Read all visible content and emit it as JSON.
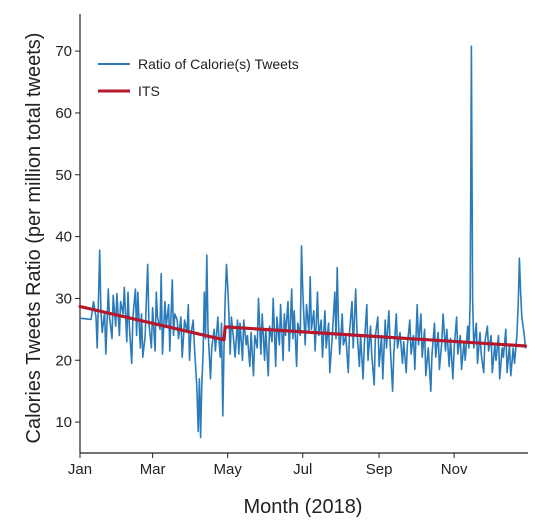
{
  "chart_data": {
    "type": "line",
    "title": "",
    "xlabel": "Month (2018)",
    "ylabel": "Calories Tweets Ratio (per million total tweets)",
    "x_unit": "day of year 2018",
    "xlim": [
      1,
      365
    ],
    "ylim": [
      5,
      76
    ],
    "x_ticks": [
      {
        "day": 1,
        "label": "Jan"
      },
      {
        "day": 60,
        "label": "Mar"
      },
      {
        "day": 121,
        "label": "May"
      },
      {
        "day": 182,
        "label": "Jul"
      },
      {
        "day": 244,
        "label": "Sep"
      },
      {
        "day": 305,
        "label": "Nov"
      }
    ],
    "y_ticks": [
      10,
      20,
      30,
      40,
      50,
      60,
      70
    ],
    "grid": false,
    "legend_position": "top-left",
    "series": [
      {
        "name": "Ratio of Calorie(s) Tweets",
        "color": "#2b7bba",
        "points": [
          [
            1,
            26.8
          ],
          [
            10,
            26.6
          ],
          [
            12,
            29.5
          ],
          [
            14,
            27.0
          ],
          [
            15,
            22.0
          ],
          [
            16,
            30.0
          ],
          [
            17,
            37.8
          ],
          [
            18,
            28.0
          ],
          [
            19,
            24.5
          ],
          [
            21,
            27.8
          ],
          [
            22,
            21.0
          ],
          [
            24,
            31.5
          ],
          [
            25,
            27.0
          ],
          [
            27,
            23.5
          ],
          [
            28,
            30.5
          ],
          [
            30,
            25.5
          ],
          [
            31,
            30.8
          ],
          [
            33,
            24.0
          ],
          [
            34,
            29.5
          ],
          [
            36,
            27.5
          ],
          [
            37,
            31.8
          ],
          [
            39,
            23.0
          ],
          [
            40,
            31.0
          ],
          [
            41,
            26.0
          ],
          [
            43,
            19.5
          ],
          [
            44,
            27.0
          ],
          [
            46,
            31.5
          ],
          [
            47,
            24.0
          ],
          [
            48,
            31.0
          ],
          [
            50,
            22.0
          ],
          [
            51,
            27.5
          ],
          [
            52,
            20.5
          ],
          [
            54,
            24.0
          ],
          [
            55,
            30.5
          ],
          [
            56,
            35.5
          ],
          [
            57,
            26.0
          ],
          [
            59,
            22.0
          ],
          [
            60,
            28.5
          ],
          [
            62,
            21.5
          ],
          [
            63,
            31.0
          ],
          [
            64,
            27.0
          ],
          [
            66,
            25.0
          ],
          [
            67,
            34.0
          ],
          [
            68,
            21.0
          ],
          [
            70,
            29.5
          ],
          [
            71,
            25.5
          ],
          [
            73,
            29.0
          ],
          [
            74,
            21.5
          ],
          [
            76,
            33.0
          ],
          [
            77,
            24.0
          ],
          [
            78,
            27.5
          ],
          [
            80,
            26.5
          ],
          [
            81,
            23.5
          ],
          [
            83,
            27.0
          ],
          [
            84,
            20.5
          ],
          [
            86,
            26.5
          ],
          [
            88,
            24.5
          ],
          [
            89,
            29.0
          ],
          [
            90,
            20.0
          ],
          [
            91,
            24.0
          ],
          [
            93,
            26.5
          ],
          [
            94,
            22.0
          ],
          [
            96,
            15.5
          ],
          [
            97,
            8.5
          ],
          [
            98,
            17.0
          ],
          [
            99,
            7.5
          ],
          [
            100,
            16.0
          ],
          [
            101,
            21.0
          ],
          [
            102,
            31.0
          ],
          [
            103,
            23.5
          ],
          [
            104,
            37.0
          ],
          [
            105,
            25.0
          ],
          [
            107,
            17.0
          ],
          [
            108,
            22.0
          ],
          [
            110,
            25.0
          ],
          [
            111,
            21.5
          ],
          [
            113,
            27.0
          ],
          [
            114,
            23.0
          ],
          [
            115,
            20.5
          ],
          [
            116,
            26.0
          ],
          [
            117,
            11.0
          ],
          [
            118,
            22.0
          ],
          [
            119,
            30.0
          ],
          [
            120,
            35.5
          ],
          [
            121,
            32.0
          ],
          [
            122,
            27.5
          ],
          [
            123,
            21.0
          ],
          [
            124,
            27.0
          ],
          [
            126,
            23.0
          ],
          [
            127,
            20.5
          ],
          [
            129,
            26.5
          ],
          [
            130,
            21.0
          ],
          [
            131,
            26.0
          ],
          [
            133,
            20.0
          ],
          [
            134,
            26.5
          ],
          [
            136,
            22.5
          ],
          [
            137,
            24.0
          ],
          [
            139,
            19.0
          ],
          [
            140,
            24.5
          ],
          [
            142,
            17.5
          ],
          [
            143,
            24.0
          ],
          [
            145,
            22.0
          ],
          [
            146,
            30.0
          ],
          [
            148,
            21.0
          ],
          [
            149,
            27.5
          ],
          [
            151,
            20.0
          ],
          [
            152,
            25.0
          ],
          [
            154,
            17.5
          ],
          [
            155,
            25.5
          ],
          [
            157,
            23.0
          ],
          [
            158,
            30.0
          ],
          [
            160,
            19.0
          ],
          [
            161,
            27.0
          ],
          [
            163,
            22.5
          ],
          [
            164,
            29.0
          ],
          [
            166,
            20.0
          ],
          [
            167,
            27.5
          ],
          [
            168,
            24.0
          ],
          [
            170,
            29.5
          ],
          [
            171,
            21.5
          ],
          [
            173,
            31.5
          ],
          [
            174,
            23.5
          ],
          [
            175,
            28.0
          ],
          [
            177,
            19.0
          ],
          [
            178,
            26.0
          ],
          [
            180,
            24.0
          ],
          [
            181,
            38.5
          ],
          [
            182,
            31.0
          ],
          [
            184,
            22.5
          ],
          [
            185,
            29.0
          ],
          [
            187,
            24.5
          ],
          [
            188,
            33.5
          ],
          [
            189,
            25.0
          ],
          [
            191,
            28.0
          ],
          [
            192,
            21.5
          ],
          [
            194,
            31.0
          ],
          [
            195,
            24.0
          ],
          [
            197,
            26.5
          ],
          [
            198,
            20.5
          ],
          [
            200,
            28.0
          ],
          [
            201,
            22.0
          ],
          [
            203,
            26.0
          ],
          [
            204,
            18.0
          ],
          [
            206,
            24.0
          ],
          [
            208,
            31.0
          ],
          [
            209,
            23.5
          ],
          [
            210,
            35.0
          ],
          [
            211,
            26.0
          ],
          [
            212,
            21.0
          ],
          [
            214,
            27.5
          ],
          [
            215,
            22.5
          ],
          [
            217,
            24.0
          ],
          [
            219,
            18.0
          ],
          [
            220,
            24.5
          ],
          [
            222,
            29.5
          ],
          [
            223,
            22.0
          ],
          [
            225,
            31.5
          ],
          [
            226,
            25.0
          ],
          [
            228,
            19.0
          ],
          [
            229,
            24.0
          ],
          [
            231,
            17.0
          ],
          [
            232,
            22.5
          ],
          [
            234,
            29.0
          ],
          [
            235,
            20.0
          ],
          [
            237,
            25.5
          ],
          [
            238,
            21.0
          ],
          [
            240,
            16.0
          ],
          [
            241,
            24.0
          ],
          [
            243,
            27.0
          ],
          [
            244,
            19.0
          ],
          [
            246,
            24.0
          ],
          [
            247,
            17.0
          ],
          [
            249,
            26.5
          ],
          [
            250,
            22.0
          ],
          [
            252,
            28.0
          ],
          [
            253,
            22.5
          ],
          [
            255,
            15.0
          ],
          [
            256,
            21.0
          ],
          [
            258,
            27.5
          ],
          [
            259,
            22.0
          ],
          [
            261,
            24.5
          ],
          [
            263,
            19.5
          ],
          [
            264,
            23.0
          ],
          [
            266,
            18.0
          ],
          [
            267,
            22.5
          ],
          [
            269,
            26.5
          ],
          [
            270,
            21.0
          ],
          [
            272,
            24.0
          ],
          [
            273,
            18.5
          ],
          [
            275,
            29.0
          ],
          [
            276,
            22.5
          ],
          [
            278,
            27.5
          ],
          [
            279,
            20.5
          ],
          [
            281,
            25.0
          ],
          [
            282,
            17.5
          ],
          [
            284,
            22.0
          ],
          [
            286,
            15.0
          ],
          [
            287,
            21.0
          ],
          [
            289,
            26.0
          ],
          [
            290,
            20.5
          ],
          [
            292,
            24.5
          ],
          [
            293,
            18.5
          ],
          [
            295,
            23.0
          ],
          [
            296,
            27.5
          ],
          [
            298,
            21.5
          ],
          [
            299,
            25.0
          ],
          [
            301,
            19.0
          ],
          [
            302,
            23.5
          ],
          [
            304,
            17.0
          ],
          [
            305,
            22.0
          ],
          [
            307,
            27.0
          ],
          [
            308,
            21.0
          ],
          [
            310,
            24.0
          ],
          [
            311,
            18.5
          ],
          [
            313,
            23.0
          ],
          [
            314,
            20.0
          ],
          [
            316,
            25.5
          ],
          [
            317,
            22.0
          ],
          [
            318,
            30.0
          ],
          [
            319,
            70.8
          ],
          [
            320,
            30.0
          ],
          [
            321,
            22.0
          ],
          [
            323,
            26.0
          ],
          [
            324,
            19.5
          ],
          [
            326,
            24.5
          ],
          [
            327,
            21.0
          ],
          [
            329,
            18.0
          ],
          [
            330,
            23.0
          ],
          [
            332,
            25.5
          ],
          [
            333,
            21.5
          ],
          [
            335,
            24.0
          ],
          [
            336,
            18.0
          ],
          [
            338,
            22.5
          ],
          [
            339,
            20.0
          ],
          [
            341,
            24.0
          ],
          [
            342,
            17.0
          ],
          [
            344,
            22.0
          ],
          [
            345,
            20.5
          ],
          [
            347,
            25.0
          ],
          [
            348,
            18.0
          ],
          [
            350,
            22.5
          ],
          [
            351,
            17.5
          ],
          [
            353,
            22.0
          ],
          [
            354,
            19.5
          ],
          [
            356,
            24.0
          ],
          [
            357,
            29.0
          ],
          [
            358,
            36.5
          ],
          [
            359,
            31.0
          ],
          [
            360,
            27.0
          ],
          [
            362,
            24.0
          ],
          [
            363,
            22.0
          ]
        ]
      },
      {
        "name": "ITS",
        "color": "#b5172b",
        "points": [
          [
            1,
            28.7
          ],
          [
            118,
            23.3
          ],
          [
            119,
            25.4
          ],
          [
            363,
            22.3
          ]
        ]
      }
    ]
  }
}
